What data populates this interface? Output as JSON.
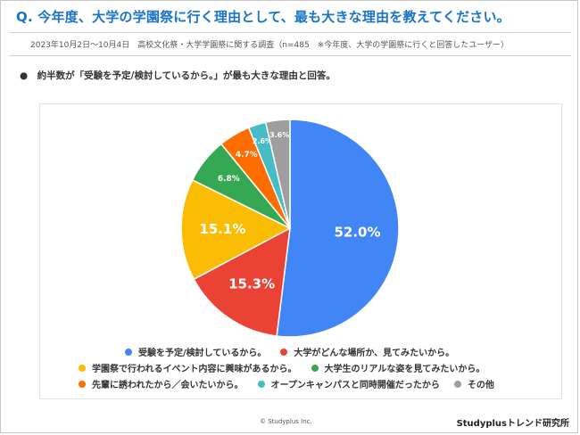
{
  "header": {
    "question": "Q. 今年度、大学の学園祭に行く理由として、最も大きな理由を教えてください。",
    "survey_note": "2023年10月2日～10月4日　高校文化祭・大学学園祭に関する調査（n=485　※今年度、大学の学園祭に行くと回答したユーザー）"
  },
  "summary": "●　約半数が「受験を予定/検討しているから。」が最も大きな理由と回答。",
  "chart_data": {
    "type": "pie",
    "start_angle_deg": 0,
    "direction": "clockwise",
    "slices": [
      {
        "label": "受験を予定/検討しているから。",
        "value": 52.0,
        "value_label": "52.0%",
        "color": "#4285f4"
      },
      {
        "label": "大学がどんな場所か、見てみたいから。",
        "value": 15.3,
        "value_label": "15.3%",
        "color": "#ea4335"
      },
      {
        "label": "学園祭で行われるイベント内容に興味があるから。",
        "value": 15.1,
        "value_label": "15.1%",
        "color": "#fbbc04"
      },
      {
        "label": "大学生のリアルな姿を見てみたいから。",
        "value": 6.8,
        "value_label": "6.8%",
        "color": "#34a853"
      },
      {
        "label": "先輩に誘われたから／会いたいから。",
        "value": 4.7,
        "value_label": "4.7%",
        "color": "#ff6d01"
      },
      {
        "label": "オープンキャンパスと同時開催だったから",
        "value": 2.6,
        "value_label": "2.6%",
        "color": "#46bdc6"
      },
      {
        "label": "その他",
        "value": 3.6,
        "value_label": "3.6%",
        "color": "#9e9e9e"
      }
    ],
    "legend_placement": "bottom"
  },
  "footer": {
    "copyright": "© Studyplus Inc.",
    "brand": "Studyplusトレンド研究所"
  }
}
